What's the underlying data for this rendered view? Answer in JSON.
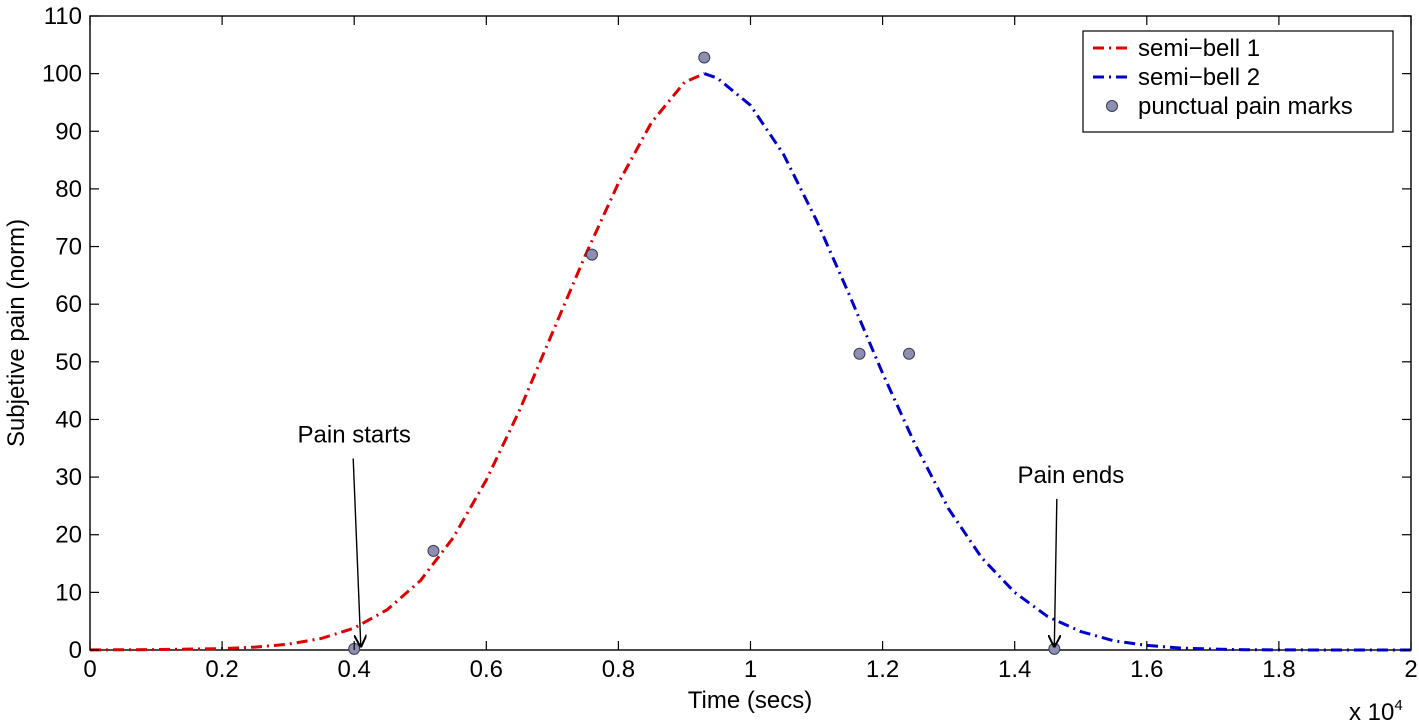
{
  "chart_data": {
    "type": "line",
    "xlabel": "Time (secs)",
    "ylabel": "Subjetive pain (norm)",
    "x_exponent_label": "x 10",
    "x_exponent_power": "4",
    "xlim": [
      0,
      2
    ],
    "ylim": [
      0,
      110
    ],
    "x_ticks": [
      0,
      0.2,
      0.4,
      0.6,
      0.8,
      1,
      1.2,
      1.4,
      1.6,
      1.8,
      2
    ],
    "x_tick_labels": [
      "0",
      "0.2",
      "0.4",
      "0.6",
      "0.8",
      "1",
      "1.2",
      "1.4",
      "1.6",
      "1.8",
      "2"
    ],
    "y_ticks": [
      0,
      10,
      20,
      30,
      40,
      50,
      60,
      70,
      80,
      90,
      100,
      110
    ],
    "y_tick_labels": [
      "0",
      "10",
      "20",
      "30",
      "40",
      "50",
      "60",
      "70",
      "80",
      "90",
      "100",
      "110"
    ],
    "grid": false,
    "legend_position": "top-right",
    "series": [
      {
        "name": "semi−bell 1",
        "kind": "line",
        "color": "#e00000",
        "dash": "dash-dot",
        "x": [
          0,
          0.1,
          0.2,
          0.25,
          0.3,
          0.35,
          0.4,
          0.45,
          0.5,
          0.55,
          0.6,
          0.65,
          0.7,
          0.75,
          0.8,
          0.85,
          0.9,
          0.93
        ],
        "y": [
          0.02,
          0.07,
          0.25,
          0.5,
          1.0,
          2.0,
          3.8,
          7.0,
          12.0,
          19.5,
          29.5,
          41.5,
          55.0,
          68.5,
          81.0,
          91.5,
          98.5,
          100
        ]
      },
      {
        "name": "semi−bell 2",
        "kind": "line",
        "color": "#0000cc",
        "dash": "dash-dot",
        "x": [
          0.93,
          0.95,
          1.0,
          1.05,
          1.1,
          1.15,
          1.2,
          1.25,
          1.3,
          1.35,
          1.4,
          1.45,
          1.5,
          1.55,
          1.6,
          1.65,
          1.7,
          1.75,
          1.8,
          1.9,
          2.0
        ],
        "y": [
          100,
          99.2,
          94.5,
          86.0,
          74.5,
          61.5,
          48.0,
          35.5,
          24.5,
          16.0,
          10.0,
          5.8,
          3.2,
          1.6,
          0.8,
          0.35,
          0.15,
          0.06,
          0.02,
          0.0,
          0.0
        ]
      },
      {
        "name": "punctual pain marks",
        "kind": "scatter",
        "color": "#8e8eb0",
        "x": [
          0.4,
          0.52,
          0.76,
          0.93,
          1.165,
          1.24,
          1.46
        ],
        "y": [
          0.2,
          17.2,
          68.6,
          102.8,
          51.4,
          51.4,
          0.2
        ]
      }
    ],
    "annotations": [
      {
        "text": "Pain starts",
        "text_x": 0.4,
        "text_y": 36,
        "arrow_to_x": 0.41,
        "arrow_to_y": 0.3
      },
      {
        "text": "Pain ends",
        "text_x": 1.485,
        "text_y": 29,
        "arrow_to_x": 1.46,
        "arrow_to_y": 0.3
      }
    ]
  }
}
